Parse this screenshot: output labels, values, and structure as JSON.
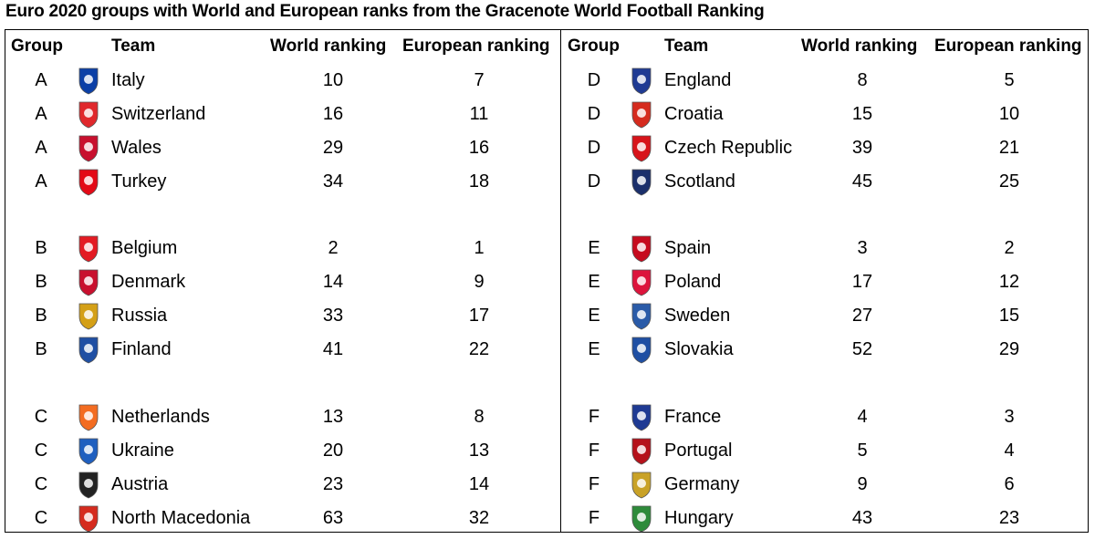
{
  "title": "Euro 2020 groups with World and European ranks from the Gracenote World Football Ranking",
  "headers": {
    "group": "Group",
    "team": "Team",
    "world": "World ranking",
    "european": "European ranking"
  },
  "chart_data": {
    "type": "table",
    "columns": [
      "Group",
      "Team",
      "World ranking",
      "European ranking"
    ],
    "left": [
      [
        {
          "group": "A",
          "team": "Italy",
          "world": 10,
          "european": 7,
          "icon": "italy-crest-icon",
          "color": "#0b3fa6"
        },
        {
          "group": "A",
          "team": "Switzerland",
          "world": 16,
          "european": 11,
          "icon": "switzerland-crest-icon",
          "color": "#e0282c"
        },
        {
          "group": "A",
          "team": "Wales",
          "world": 29,
          "european": 16,
          "icon": "wales-crest-icon",
          "color": "#c8102e"
        },
        {
          "group": "A",
          "team": "Turkey",
          "world": 34,
          "european": 18,
          "icon": "turkey-crest-icon",
          "color": "#e30a17"
        }
      ],
      [
        {
          "group": "B",
          "team": "Belgium",
          "world": 2,
          "european": 1,
          "icon": "belgium-crest-icon",
          "color": "#e31b23"
        },
        {
          "group": "B",
          "team": "Denmark",
          "world": 14,
          "european": 9,
          "icon": "denmark-crest-icon",
          "color": "#c8102e"
        },
        {
          "group": "B",
          "team": "Russia",
          "world": 33,
          "european": 17,
          "icon": "russia-crest-icon",
          "color": "#d4a017"
        },
        {
          "group": "B",
          "team": "Finland",
          "world": 41,
          "european": 22,
          "icon": "finland-crest-icon",
          "color": "#1f4fa3"
        }
      ],
      [
        {
          "group": "C",
          "team": "Netherlands",
          "world": 13,
          "european": 8,
          "icon": "netherlands-crest-icon",
          "color": "#f36c21"
        },
        {
          "group": "C",
          "team": "Ukraine",
          "world": 20,
          "european": 13,
          "icon": "ukraine-crest-icon",
          "color": "#1f5fbf"
        },
        {
          "group": "C",
          "team": "Austria",
          "world": 23,
          "european": 14,
          "icon": "austria-crest-icon",
          "color": "#222222"
        },
        {
          "group": "C",
          "team": "North Macedonia",
          "world": 63,
          "european": 32,
          "icon": "north-macedonia-crest-icon",
          "color": "#d52b1e"
        }
      ]
    ],
    "right": [
      [
        {
          "group": "D",
          "team": "England",
          "world": 8,
          "european": 5,
          "icon": "england-crest-icon",
          "color": "#1f3a93"
        },
        {
          "group": "D",
          "team": "Croatia",
          "world": 15,
          "european": 10,
          "icon": "croatia-crest-icon",
          "color": "#d52b1e"
        },
        {
          "group": "D",
          "team": "Czech Republic",
          "world": 39,
          "european": 21,
          "icon": "czech-crest-icon",
          "color": "#d7141a"
        },
        {
          "group": "D",
          "team": "Scotland",
          "world": 45,
          "european": 25,
          "icon": "scotland-crest-icon",
          "color": "#1b2f6b"
        }
      ],
      [
        {
          "group": "E",
          "team": "Spain",
          "world": 3,
          "european": 2,
          "icon": "spain-crest-icon",
          "color": "#c60b1e"
        },
        {
          "group": "E",
          "team": "Poland",
          "world": 17,
          "european": 12,
          "icon": "poland-crest-icon",
          "color": "#dc143c"
        },
        {
          "group": "E",
          "team": "Sweden",
          "world": 27,
          "european": 15,
          "icon": "sweden-crest-icon",
          "color": "#2a5ba8"
        },
        {
          "group": "E",
          "team": "Slovakia",
          "world": 52,
          "european": 29,
          "icon": "slovakia-crest-icon",
          "color": "#1f4fa3"
        }
      ],
      [
        {
          "group": "F",
          "team": "France",
          "world": 4,
          "european": 3,
          "icon": "france-crest-icon",
          "color": "#1f3a93"
        },
        {
          "group": "F",
          "team": "Portugal",
          "world": 5,
          "european": 4,
          "icon": "portugal-crest-icon",
          "color": "#b5121b"
        },
        {
          "group": "F",
          "team": "Germany",
          "world": 9,
          "european": 6,
          "icon": "germany-crest-icon",
          "color": "#c9a227"
        },
        {
          "group": "F",
          "team": "Hungary",
          "world": 43,
          "european": 23,
          "icon": "hungary-crest-icon",
          "color": "#2e8b3a"
        }
      ]
    ]
  }
}
